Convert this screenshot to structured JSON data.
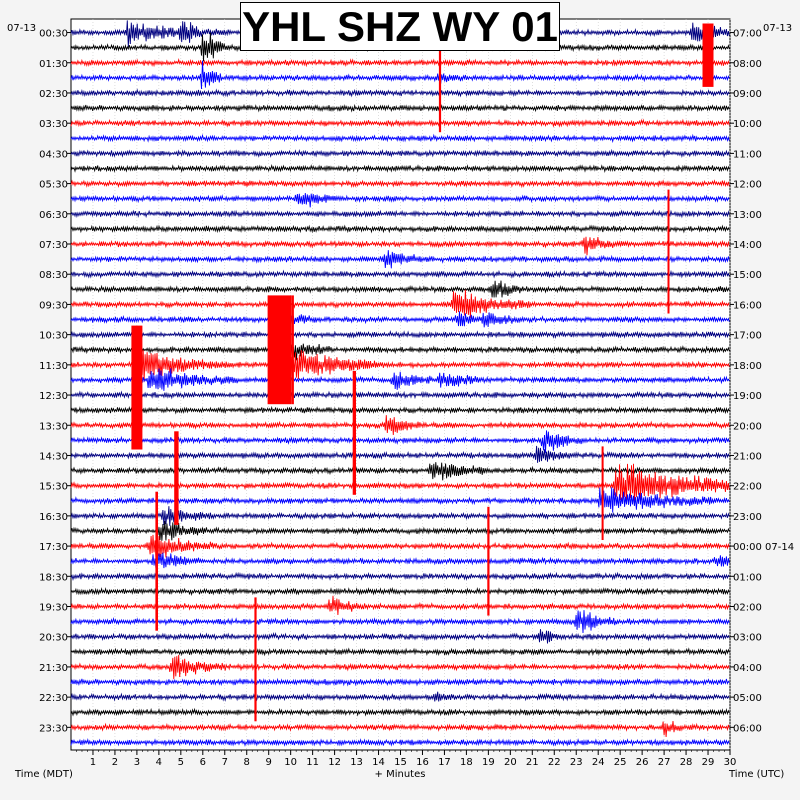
{
  "chart_data": {
    "type": "helicorder",
    "title": "YHL SHZ WY 01",
    "left_date": "07-13",
    "right_date": "07-13",
    "right_date_change": "07-14",
    "xlabel": "+ Minutes",
    "ylabel_left": "Time (MDT)",
    "ylabel_right": "Time (UTC)",
    "xlim": [
      0,
      30
    ],
    "x_ticks": [
      1,
      2,
      3,
      4,
      5,
      6,
      7,
      8,
      9,
      10,
      11,
      12,
      13,
      14,
      15,
      16,
      17,
      18,
      19,
      20,
      21,
      22,
      23,
      24,
      25,
      26,
      27,
      28,
      29,
      30
    ],
    "row_minutes": 30,
    "row_count": 48,
    "trace_colors": [
      "#000080",
      "#000000",
      "#ff0000",
      "#0000ff"
    ],
    "clip_color": "#ff0000",
    "left_time_labels": [
      "00:30",
      "01:30",
      "02:30",
      "03:30",
      "04:30",
      "05:30",
      "06:30",
      "07:30",
      "08:30",
      "09:30",
      "10:30",
      "11:30",
      "12:30",
      "13:30",
      "14:30",
      "15:30",
      "16:30",
      "17:30",
      "18:30",
      "19:30",
      "20:30",
      "21:30",
      "22:30",
      "23:30"
    ],
    "right_time_labels": [
      "07:00",
      "08:00",
      "09:00",
      "10:00",
      "11:00",
      "12:00",
      "13:00",
      "14:00",
      "15:00",
      "16:00",
      "17:00",
      "18:00",
      "19:00",
      "20:00",
      "21:00",
      "22:00",
      "23:00",
      "00:00 07-14",
      "01:00",
      "02:00",
      "03:00",
      "04:00",
      "05:00",
      "06:00"
    ],
    "events": [
      {
        "row": 0,
        "minute": 2.6,
        "amp": 14,
        "dur": 1.4
      },
      {
        "row": 0,
        "minute": 5.0,
        "amp": 9,
        "dur": 0.9
      },
      {
        "row": 0,
        "minute": 28.3,
        "amp": 9,
        "dur": 1.2
      },
      {
        "row": 1,
        "minute": 6.0,
        "amp": 22,
        "dur": 0.5
      },
      {
        "row": 3,
        "minute": 6.0,
        "amp": 18,
        "dur": 0.4
      },
      {
        "row": 3,
        "minute": 16.7,
        "amp": 6,
        "dur": 0.6
      },
      {
        "row": 11,
        "minute": 10.3,
        "amp": 10,
        "dur": 0.8
      },
      {
        "row": 14,
        "minute": 23.4,
        "amp": 10,
        "dur": 0.8
      },
      {
        "row": 15,
        "minute": 14.3,
        "amp": 9,
        "dur": 1.0
      },
      {
        "row": 19,
        "minute": 18.8,
        "amp": 9,
        "dur": 0.8
      },
      {
        "row": 19,
        "minute": 17.6,
        "amp": 9,
        "dur": 0.6
      },
      {
        "row": 18,
        "minute": 17.4,
        "amp": 17,
        "dur": 1.6
      },
      {
        "row": 17,
        "minute": 19.2,
        "amp": 14,
        "dur": 0.6
      },
      {
        "row": 19,
        "minute": 9.4,
        "amp": 12,
        "dur": 0.8
      },
      {
        "row": 21,
        "minute": 9.6,
        "amp": 14,
        "dur": 1.0
      },
      {
        "row": 22,
        "minute": 9.4,
        "amp": 22,
        "dur": 2.2
      },
      {
        "row": 22,
        "minute": 3.2,
        "amp": 16,
        "dur": 1.8
      },
      {
        "row": 23,
        "minute": 3.6,
        "amp": 14,
        "dur": 1.8
      },
      {
        "row": 23,
        "minute": 14.7,
        "amp": 12,
        "dur": 0.8
      },
      {
        "row": 23,
        "minute": 16.8,
        "amp": 10,
        "dur": 0.9
      },
      {
        "row": 26,
        "minute": 14.4,
        "amp": 12,
        "dur": 0.7
      },
      {
        "row": 27,
        "minute": 21.5,
        "amp": 12,
        "dur": 0.9
      },
      {
        "row": 28,
        "minute": 21.2,
        "amp": 10,
        "dur": 0.7
      },
      {
        "row": 29,
        "minute": 16.4,
        "amp": 12,
        "dur": 1.2
      },
      {
        "row": 30,
        "minute": 24.8,
        "amp": 24,
        "dur": 3.0
      },
      {
        "row": 31,
        "minute": 24.1,
        "amp": 14,
        "dur": 2.4
      },
      {
        "row": 32,
        "minute": 4.2,
        "amp": 10,
        "dur": 1.0
      },
      {
        "row": 33,
        "minute": 4.0,
        "amp": 14,
        "dur": 1.0
      },
      {
        "row": 34,
        "minute": 3.6,
        "amp": 14,
        "dur": 1.4
      },
      {
        "row": 35,
        "minute": 3.8,
        "amp": 10,
        "dur": 1.0
      },
      {
        "row": 35,
        "minute": 29.4,
        "amp": 8,
        "dur": 0.8
      },
      {
        "row": 38,
        "minute": 11.8,
        "amp": 10,
        "dur": 0.8
      },
      {
        "row": 39,
        "minute": 23.0,
        "amp": 14,
        "dur": 0.8
      },
      {
        "row": 40,
        "minute": 21.4,
        "amp": 10,
        "dur": 0.5
      },
      {
        "row": 42,
        "minute": 4.6,
        "amp": 14,
        "dur": 1.1
      },
      {
        "row": 44,
        "minute": 16.6,
        "amp": 6,
        "dur": 0.4
      },
      {
        "row": 46,
        "minute": 27.0,
        "amp": 10,
        "dur": 0.4
      }
    ],
    "clipped_spans": [
      {
        "minute": 29.0,
        "row_start": 0,
        "row_end": 3,
        "width": 0.5
      },
      {
        "minute": 16.8,
        "row_start": 1,
        "row_end": 6,
        "width": 0.1
      },
      {
        "minute": 27.2,
        "row_start": 11,
        "row_end": 18,
        "width": 0.07
      },
      {
        "minute": 9.5,
        "row_start": 18,
        "row_end": 24,
        "width": 1.1
      },
      {
        "minute": 10.1,
        "row_start": 18,
        "row_end": 24,
        "width": 0.07
      },
      {
        "minute": 3.0,
        "row_start": 20,
        "row_end": 27,
        "width": 0.5
      },
      {
        "minute": 12.9,
        "row_start": 23,
        "row_end": 30,
        "width": 0.15
      },
      {
        "minute": 4.8,
        "row_start": 27,
        "row_end": 32,
        "width": 0.2
      },
      {
        "minute": 24.2,
        "row_start": 28,
        "row_end": 33,
        "width": 0.07
      },
      {
        "minute": 3.9,
        "row_start": 31,
        "row_end": 39,
        "width": 0.12
      },
      {
        "minute": 19.0,
        "row_start": 32,
        "row_end": 38,
        "width": 0.1
      },
      {
        "minute": 8.4,
        "row_start": 38,
        "row_end": 45,
        "width": 0.1
      }
    ]
  }
}
